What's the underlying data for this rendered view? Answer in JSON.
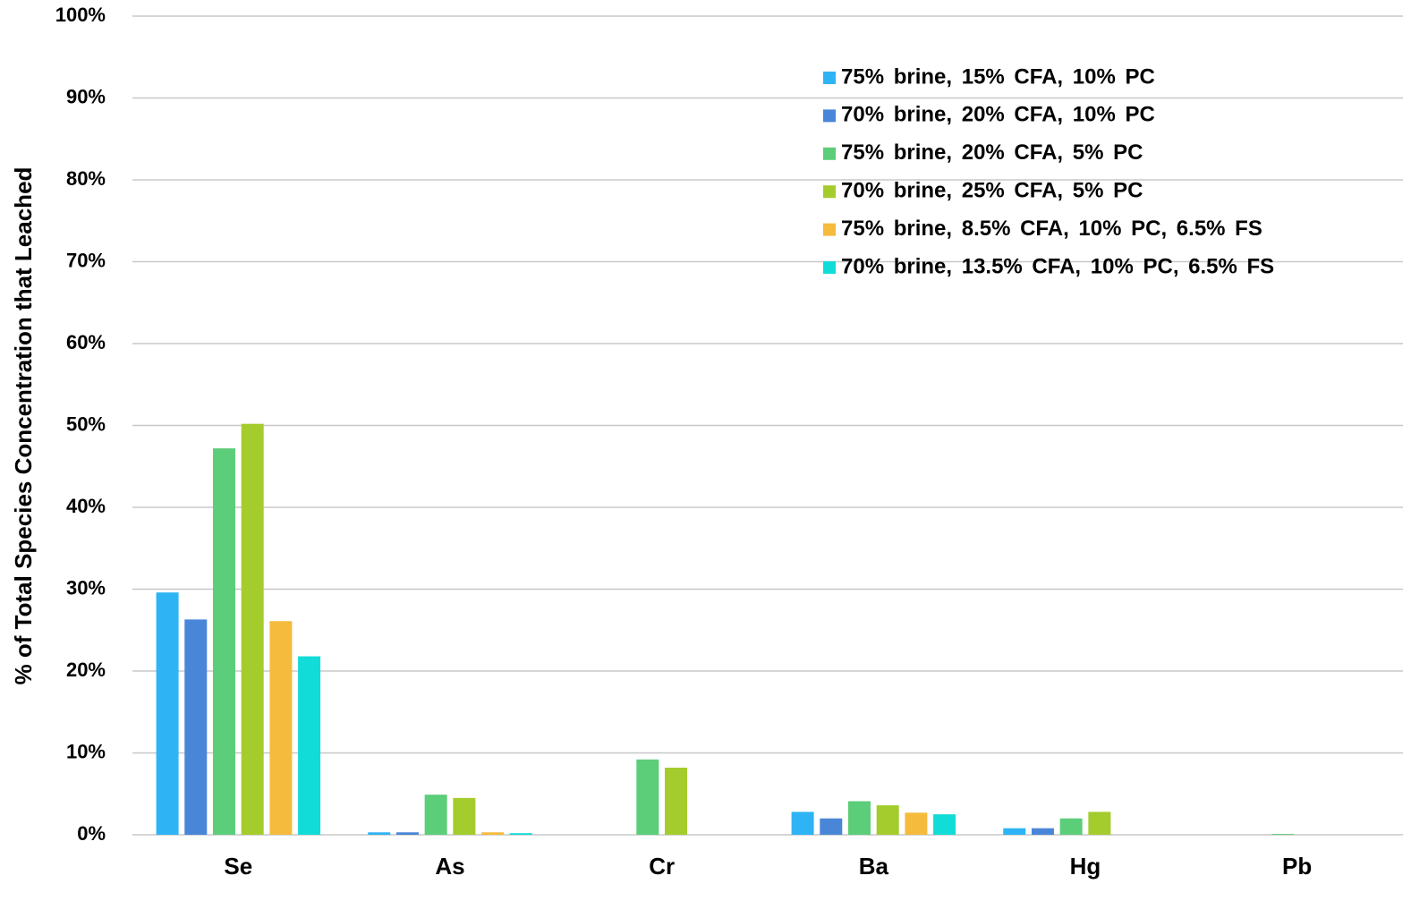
{
  "chart_data": {
    "type": "bar",
    "y_label": "% of Total Species Concentration that Leached",
    "categories": [
      "Se",
      "As",
      "Cr",
      "Ba",
      "Hg",
      "Pb"
    ],
    "series": [
      {
        "name": "75% brine, 15% CFA, 10% PC",
        "color": "#2eb4f5",
        "values": [
          29.6,
          0.3,
          0,
          2.8,
          0.8,
          0
        ]
      },
      {
        "name": "70% brine, 20% CFA, 10% PC",
        "color": "#4a86d8",
        "values": [
          26.3,
          0.3,
          0,
          2.0,
          0.8,
          0
        ]
      },
      {
        "name": "75% brine, 20% CFA, 5% PC",
        "color": "#5ccd79",
        "values": [
          47.2,
          4.9,
          9.2,
          4.1,
          2.0,
          0.1
        ]
      },
      {
        "name": "70% brine, 25% CFA, 5% PC",
        "color": "#a4cc2c",
        "values": [
          50.2,
          4.5,
          8.2,
          3.6,
          2.8,
          0
        ]
      },
      {
        "name": "75% brine, 8.5% CFA, 10% PC, 6.5% FS",
        "color": "#f5bb3d",
        "values": [
          26.1,
          0.3,
          0,
          2.7,
          0,
          0
        ]
      },
      {
        "name": "70% brine, 13.5% CFA, 10% PC, 6.5% FS",
        "color": "#12dcd8",
        "values": [
          21.8,
          0.2,
          0,
          2.5,
          0,
          0
        ]
      }
    ],
    "ylim": [
      0,
      100
    ],
    "yticks": [
      {
        "value": 0,
        "label": "0%"
      },
      {
        "value": 10,
        "label": "10%"
      },
      {
        "value": 20,
        "label": "20%"
      },
      {
        "value": 30,
        "label": "30%"
      },
      {
        "value": 40,
        "label": "40%"
      },
      {
        "value": 50,
        "label": "50%"
      },
      {
        "value": 60,
        "label": "60%"
      },
      {
        "value": 70,
        "label": "70%"
      },
      {
        "value": 80,
        "label": "80%"
      },
      {
        "value": 90,
        "label": "90%"
      },
      {
        "value": 100,
        "label": "100%"
      }
    ],
    "grid": true
  }
}
